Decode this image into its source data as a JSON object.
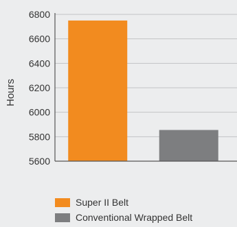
{
  "chart_data": {
    "type": "bar",
    "title": "",
    "xlabel": "",
    "ylabel": "Hours",
    "categories": [
      "Super II Belt",
      "Conventional Wrapped Belt"
    ],
    "values": [
      6750,
      5855
    ],
    "colors": [
      "#f28b1f",
      "#7d7e80"
    ],
    "ylim": [
      5600,
      6800
    ],
    "yticks": [
      5600,
      5800,
      6000,
      6200,
      6400,
      6600,
      6800
    ],
    "grid": true,
    "legend_placement": "bottom"
  },
  "legend": {
    "items": [
      {
        "label": "Super II Belt",
        "color": "#f28b1f"
      },
      {
        "label": "Conventional Wrapped Belt",
        "color": "#7d7e80"
      }
    ]
  }
}
